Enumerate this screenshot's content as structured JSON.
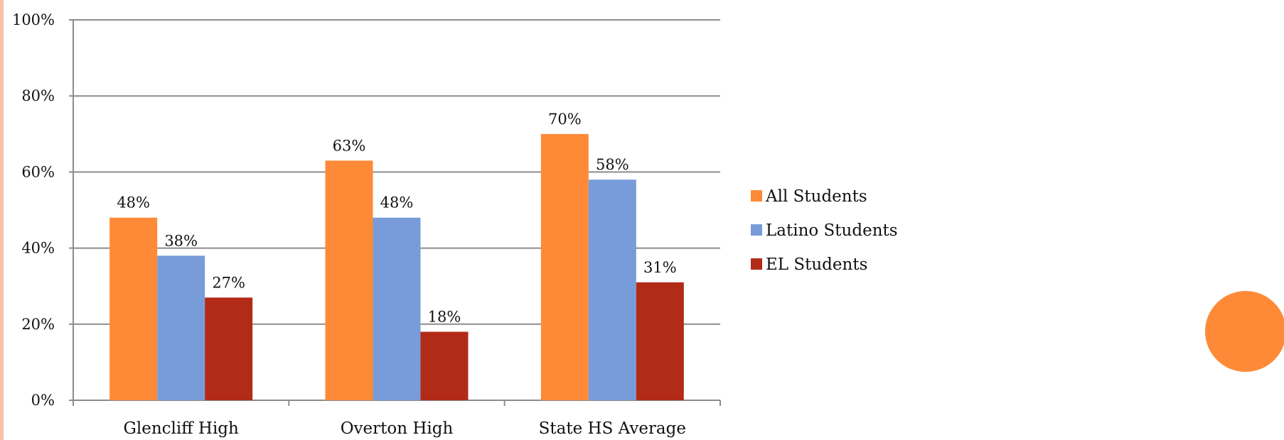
{
  "chart_data": {
    "type": "bar",
    "categories": [
      "Glencliff High",
      "Overton High",
      "State HS Average"
    ],
    "series": [
      {
        "name": "All Students",
        "values": [
          48,
          63,
          70
        ],
        "color": "#fe8a38"
      },
      {
        "name": "Latino Students",
        "values": [
          38,
          48,
          58
        ],
        "color": "#789cd9"
      },
      {
        "name": "EL Students",
        "values": [
          27,
          18,
          31
        ],
        "color": "#b22b16"
      }
    ],
    "data_labels": [
      [
        "48%",
        "63%",
        "70%"
      ],
      [
        "38%",
        "48%",
        "58%"
      ],
      [
        "27%",
        "18%",
        "31%"
      ]
    ],
    "y_ticks": [
      0,
      20,
      40,
      60,
      80,
      100
    ],
    "y_tick_labels": [
      "0%",
      "20%",
      "40%",
      "60%",
      "80%",
      "100%"
    ],
    "ylim": [
      0,
      100
    ],
    "y_unit": "%",
    "grid": true,
    "legend_position": "right",
    "title": "",
    "xlabel": "",
    "ylabel": ""
  }
}
